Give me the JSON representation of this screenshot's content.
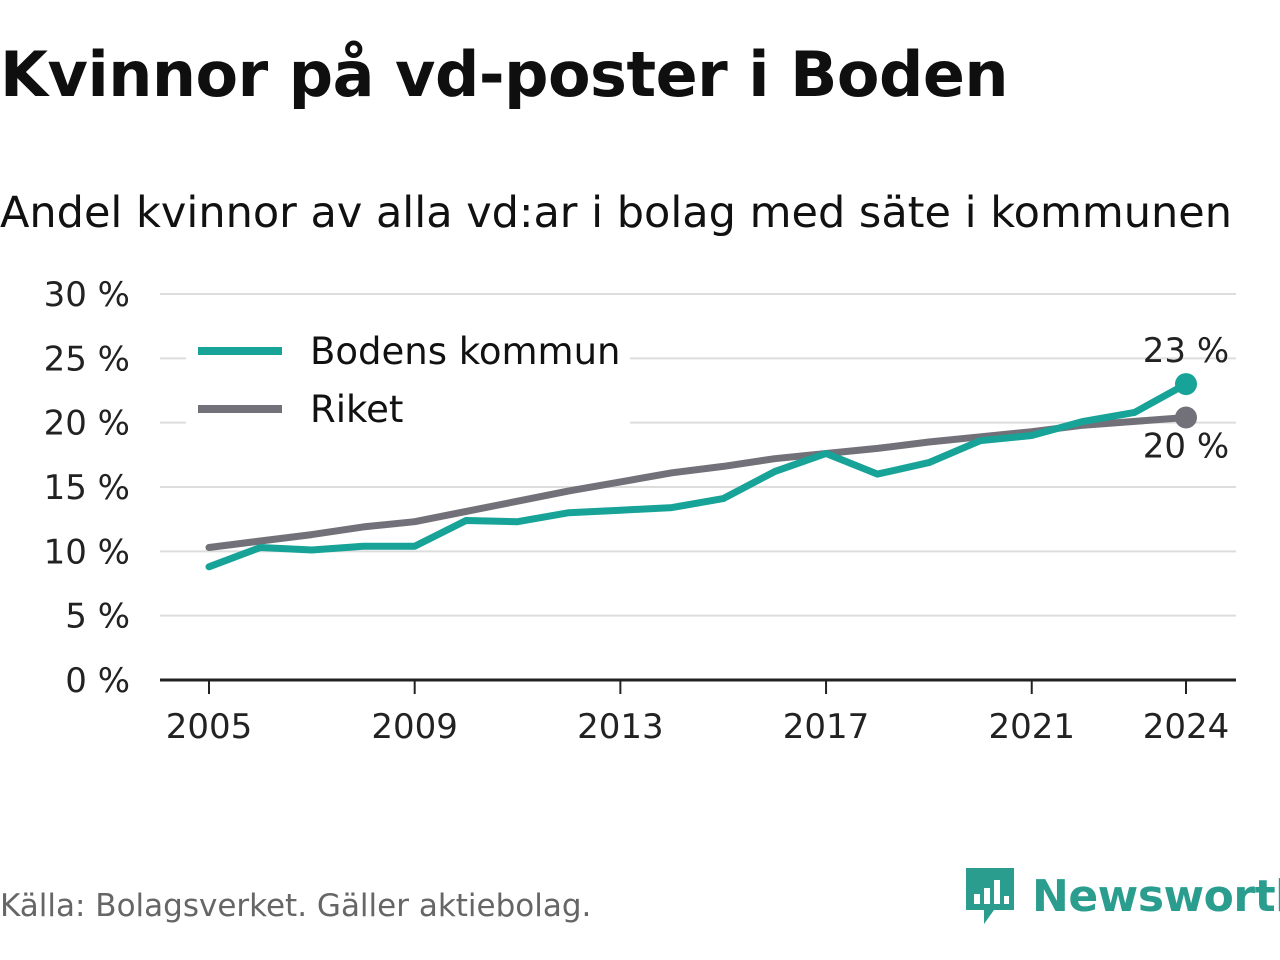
{
  "title": "Kvinnor på vd-poster i Boden",
  "subtitle": "Andel kvinnor av alla vd:ar i bolag med säte i kommunen",
  "source": "Källa: Bolagsverket. Gäller aktiebolag.",
  "brand": {
    "name": "Newsworthy",
    "icon": "newsworthy-logo-icon",
    "color": "#2a9d8f"
  },
  "chart_data": {
    "type": "line",
    "x": [
      2005,
      2006,
      2007,
      2008,
      2009,
      2010,
      2011,
      2012,
      2013,
      2014,
      2015,
      2016,
      2017,
      2018,
      2019,
      2020,
      2021,
      2022,
      2023,
      2024
    ],
    "series": [
      {
        "name": "Bodens kommun",
        "color": "#17a398",
        "values": [
          8.8,
          10.3,
          10.1,
          10.4,
          10.4,
          12.4,
          12.3,
          13.0,
          13.2,
          13.4,
          14.1,
          16.2,
          17.6,
          16.0,
          16.9,
          18.6,
          19.0,
          20.1,
          20.8,
          23.0
        ],
        "end_label": "23 %"
      },
      {
        "name": "Riket",
        "color": "#727179",
        "values": [
          10.3,
          10.8,
          11.3,
          11.9,
          12.3,
          13.1,
          13.9,
          14.7,
          15.4,
          16.1,
          16.6,
          17.2,
          17.6,
          18.0,
          18.5,
          18.9,
          19.3,
          19.8,
          20.1,
          20.4
        ],
        "end_label": "20 %"
      }
    ],
    "x_ticks": [
      "2005",
      "2009",
      "2013",
      "2017",
      "2021",
      "2024"
    ],
    "y_ticks": [
      "0 %",
      "5 %",
      "10 %",
      "15 %",
      "20 %",
      "25 %",
      "30 %"
    ],
    "ylim": [
      0,
      30
    ],
    "xlim": [
      2005,
      2024
    ],
    "grid": true,
    "legend_position": "top-left",
    "gridline_color": "#dddddd",
    "axis_color": "#222222"
  }
}
